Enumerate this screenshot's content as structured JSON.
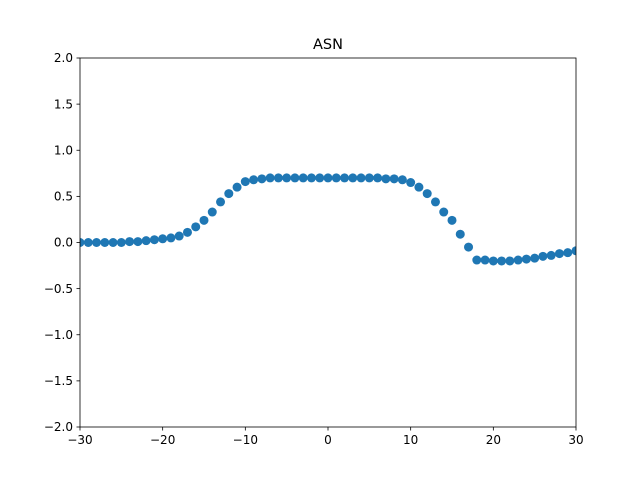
{
  "chart_data": {
    "type": "scatter",
    "title": "ASN",
    "xlabel": "",
    "ylabel": "",
    "xlim": [
      -30,
      30
    ],
    "ylim": [
      -2.0,
      2.0
    ],
    "grid": false,
    "x_ticks": [
      -30,
      -20,
      -10,
      0,
      10,
      20,
      30
    ],
    "x_tick_labels": [
      "−30",
      "−20",
      "−10",
      "0",
      "10",
      "20",
      "30"
    ],
    "y_ticks": [
      -2.0,
      -1.5,
      -1.0,
      -0.5,
      0.0,
      0.5,
      1.0,
      1.5,
      2.0
    ],
    "y_tick_labels": [
      "−2.0",
      "−1.5",
      "−1.0",
      "−0.5",
      "0.0",
      "0.5",
      "1.0",
      "1.5",
      "2.0"
    ],
    "series": [
      {
        "color": "#1f77b4",
        "x": [
          -30,
          -29,
          -28,
          -27,
          -26,
          -25,
          -24,
          -23,
          -22,
          -21,
          -20,
          -19,
          -18,
          -17,
          -16,
          -15,
          -14,
          -13,
          -12,
          -11,
          -10,
          -9,
          -8,
          -7,
          -6,
          -5,
          -4,
          -3,
          -2,
          -1,
          0,
          1,
          2,
          3,
          4,
          5,
          6,
          7,
          8,
          9,
          10,
          11,
          12,
          13,
          14,
          15,
          16,
          17,
          18,
          19,
          20,
          21,
          22,
          23,
          24,
          25,
          26,
          27,
          28,
          29,
          30
        ],
        "y": [
          0.0,
          0.0,
          0.0,
          0.0,
          0.0,
          0.0,
          0.01,
          0.01,
          0.02,
          0.03,
          0.04,
          0.05,
          0.07,
          0.11,
          0.17,
          0.24,
          0.33,
          0.44,
          0.53,
          0.6,
          0.66,
          0.68,
          0.69,
          0.7,
          0.7,
          0.7,
          0.7,
          0.7,
          0.7,
          0.7,
          0.7,
          0.7,
          0.7,
          0.7,
          0.7,
          0.7,
          0.7,
          0.69,
          0.69,
          0.68,
          0.65,
          0.6,
          0.53,
          0.44,
          0.33,
          0.24,
          0.09,
          -0.05,
          -0.19,
          -0.19,
          -0.2,
          -0.2,
          -0.2,
          -0.19,
          -0.18,
          -0.17,
          -0.15,
          -0.14,
          -0.12,
          -0.11,
          -0.09
        ]
      }
    ]
  }
}
